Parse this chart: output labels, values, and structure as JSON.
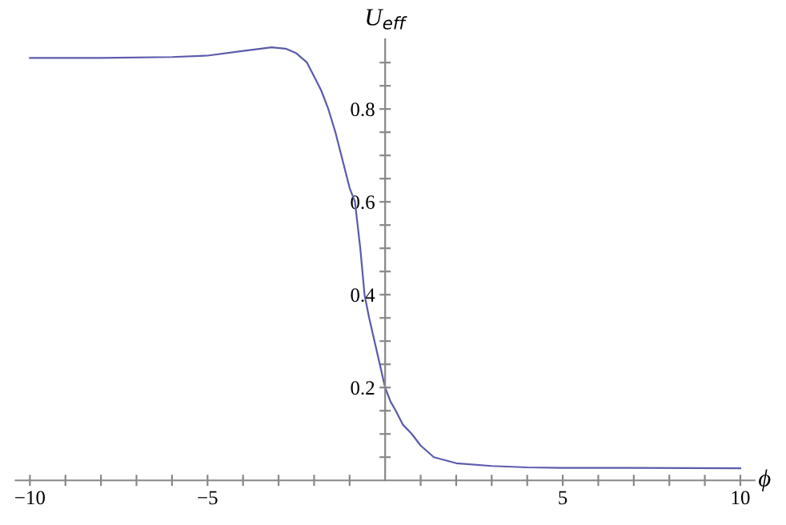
{
  "chart_data": {
    "type": "line",
    "xlabel": "ϕ",
    "ylabel": "U$_{eff}$",
    "x": [
      -10,
      -8,
      -6,
      -5,
      -4,
      -3.5,
      -3.2,
      -2.8,
      -2.5,
      -2.2,
      -2,
      -1.8,
      -1.6,
      -1.4,
      -1.2,
      -1,
      -0.85,
      -0.7,
      -0.58,
      -0.45,
      -0.3,
      -0.15,
      0,
      0.15,
      0.3,
      0.5,
      0.75,
      1,
      1.37,
      2,
      3,
      4,
      5,
      7,
      10
    ],
    "series": [
      {
        "color": "#5b5bad",
        "values": [
          0.91,
          0.91,
          0.912,
          0.915,
          0.925,
          0.93,
          0.933,
          0.93,
          0.92,
          0.9,
          0.87,
          0.84,
          0.8,
          0.75,
          0.69,
          0.63,
          0.6,
          0.5,
          0.4,
          0.35,
          0.3,
          0.25,
          0.2,
          0.17,
          0.15,
          0.12,
          0.1,
          0.075,
          0.05,
          0.037,
          0.031,
          0.028,
          0.027,
          0.027,
          0.026
        ]
      }
    ],
    "xlim": [
      -10.4,
      10.4
    ],
    "ylim": [
      0,
      0.95
    ],
    "xticks": [
      {
        "value": -10,
        "label": "−10"
      },
      {
        "value": -9,
        "label": null
      },
      {
        "value": -8,
        "label": null
      },
      {
        "value": -7,
        "label": null
      },
      {
        "value": -6,
        "label": null
      },
      {
        "value": -5,
        "label": "−5"
      },
      {
        "value": -4,
        "label": null
      },
      {
        "value": -3,
        "label": null
      },
      {
        "value": -2,
        "label": null
      },
      {
        "value": -1,
        "label": null
      },
      {
        "value": 1,
        "label": null
      },
      {
        "value": 2,
        "label": null
      },
      {
        "value": 3,
        "label": null
      },
      {
        "value": 4,
        "label": null
      },
      5,
      {
        "value": 6,
        "label": null
      },
      {
        "value": 7,
        "label": null
      },
      {
        "value": 8,
        "label": null
      },
      {
        "value": 9,
        "label": null
      },
      10
    ],
    "yticks": [
      {
        "value": 0.05,
        "label": null
      },
      {
        "value": 0.1,
        "label": null
      },
      {
        "value": 0.15,
        "label": null
      },
      0.2,
      {
        "value": 0.25,
        "label": null
      },
      {
        "value": 0.3,
        "label": null
      },
      {
        "value": 0.35,
        "label": null
      },
      0.4,
      {
        "value": 0.45,
        "label": null
      },
      {
        "value": 0.5,
        "label": null
      },
      {
        "value": 0.55,
        "label": null
      },
      0.6,
      {
        "value": 0.65,
        "label": null
      },
      {
        "value": 0.7,
        "label": null
      },
      {
        "value": 0.75,
        "label": null
      },
      0.8,
      {
        "value": 0.85,
        "label": null
      },
      {
        "value": 0.9,
        "label": null
      }
    ],
    "grid": false,
    "legend": false
  }
}
